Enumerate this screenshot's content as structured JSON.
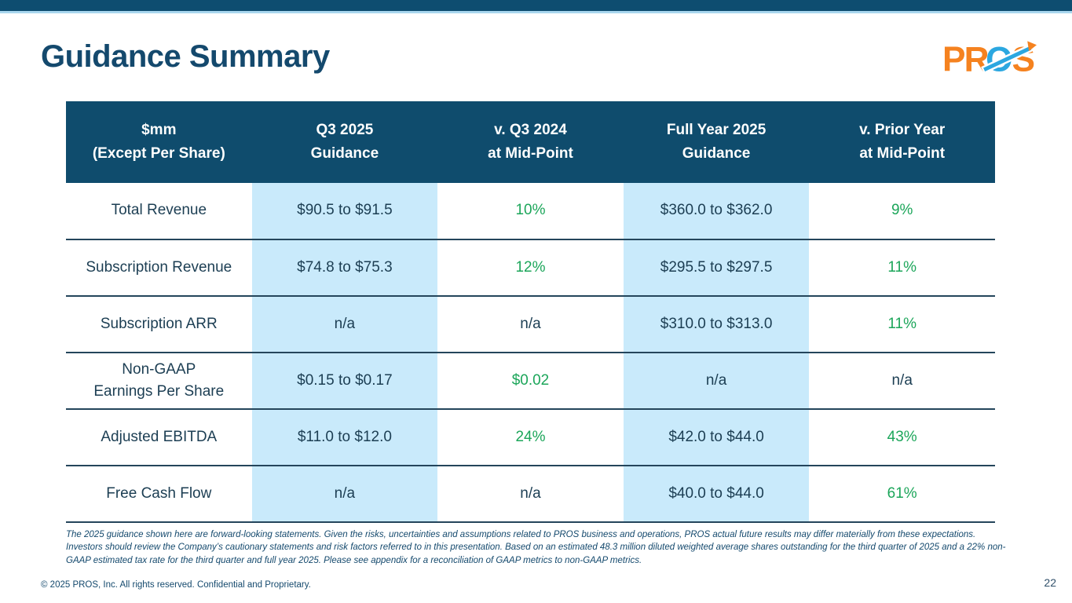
{
  "slide": {
    "title": "Guidance Summary",
    "page_number": "22",
    "footer_text": "© 2025 PROS, Inc. All rights reserved. Confidential and Proprietary.",
    "footnote": "The 2025 guidance shown here are forward-looking statements. Given the risks, uncertainties and assumptions related to PROS business and operations, PROS actual future results may differ materially from these expectations. Investors should review the Company’s cautionary statements and risk factors referred to in this presentation. Based on an estimated 48.3 million diluted weighted average shares outstanding for the third quarter of 2025 and a 22% non-GAAP estimated tax rate for the third quarter and full year 2025. Please see appendix for a reconciliation of GAAP metrics to non-GAAP metrics.",
    "logo": {
      "part1": "PR",
      "part2": "O",
      "part3": "S"
    }
  },
  "colors": {
    "top_bar": "#0E4D70",
    "top_bar_underline": "#A9D7EE",
    "header_bg": "#0F4C6D",
    "header_text": "#FFFFFF",
    "highlight_column": "#C9EAFB",
    "body_text": "#1C3E53",
    "positive_green": "#1CA65A",
    "title_text": "#14496D",
    "logo_orange": "#F5821F",
    "logo_blue": "#2BA7E0"
  },
  "table": {
    "columns": [
      [
        "$mm",
        "(Except Per Share)"
      ],
      [
        "Q3 2025",
        "Guidance"
      ],
      [
        "v. Q3 2024",
        "at Mid-Point"
      ],
      [
        "Full Year 2025",
        "Guidance"
      ],
      [
        "v. Prior Year",
        "at Mid-Point"
      ]
    ],
    "rows": [
      {
        "label": [
          "Total Revenue"
        ],
        "cells": [
          {
            "text": "$90.5 to $91.5",
            "green": false
          },
          {
            "text": "10%",
            "green": true
          },
          {
            "text": "$360.0 to $362.0",
            "green": false
          },
          {
            "text": "9%",
            "green": true
          }
        ]
      },
      {
        "label": [
          "Subscription Revenue"
        ],
        "cells": [
          {
            "text": "$74.8 to $75.3",
            "green": false
          },
          {
            "text": "12%",
            "green": true
          },
          {
            "text": "$295.5 to $297.5",
            "green": false
          },
          {
            "text": "11%",
            "green": true
          }
        ]
      },
      {
        "label": [
          "Subscription ARR"
        ],
        "cells": [
          {
            "text": "n/a",
            "green": false
          },
          {
            "text": "n/a",
            "green": false
          },
          {
            "text": "$310.0 to $313.0",
            "green": false
          },
          {
            "text": "11%",
            "green": true
          }
        ]
      },
      {
        "label": [
          "Non-GAAP",
          "Earnings Per Share"
        ],
        "cells": [
          {
            "text": "$0.15 to $0.17",
            "green": false
          },
          {
            "text": "$0.02",
            "green": true
          },
          {
            "text": "n/a",
            "green": false
          },
          {
            "text": "n/a",
            "green": false
          }
        ]
      },
      {
        "label": [
          "Adjusted EBITDA"
        ],
        "cells": [
          {
            "text": "$11.0 to $12.0",
            "green": false
          },
          {
            "text": "24%",
            "green": true
          },
          {
            "text": "$42.0 to $44.0",
            "green": false
          },
          {
            "text": "43%",
            "green": true
          }
        ]
      },
      {
        "label": [
          "Free Cash Flow"
        ],
        "cells": [
          {
            "text": "n/a",
            "green": false
          },
          {
            "text": "n/a",
            "green": false
          },
          {
            "text": "$40.0 to $44.0",
            "green": false
          },
          {
            "text": "61%",
            "green": true
          }
        ]
      }
    ]
  }
}
